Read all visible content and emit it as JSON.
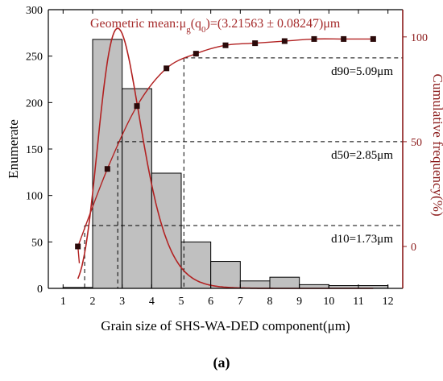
{
  "chart_data": {
    "type": "bar",
    "xlabel": "Grain size of SHS-WA-DED component(μm)",
    "ylabel": "Enumerate",
    "y2label": "Cumulative frequency(%)",
    "title": "Geometric mean:μg(q0)=(3.21563 ± 0.08247)μm",
    "title_parts": {
      "main": "Geometric mean:μ",
      "sub1": "g",
      "mid": "(q",
      "sub2": "0",
      "end": ")=(3.21563 ± 0.08247)μm"
    },
    "xlim": [
      0.5,
      12.5
    ],
    "ylim": [
      0,
      300
    ],
    "y2lim": [
      -20,
      113
    ],
    "x_ticks": [
      "1",
      "2",
      "3",
      "4",
      "5",
      "6",
      "7",
      "8",
      "9",
      "10",
      "11",
      "12"
    ],
    "y_ticks": [
      "0",
      "50",
      "100",
      "150",
      "200",
      "250",
      "300"
    ],
    "y2_ticks": [
      "0",
      "50",
      "100"
    ],
    "bars": {
      "bin_width": 1,
      "centers": [
        1.5,
        2.5,
        3.5,
        4.5,
        5.5,
        6.5,
        7.5,
        8.5,
        9.5,
        10.5,
        11.5
      ],
      "values": [
        1,
        268,
        215,
        124,
        50,
        29,
        8,
        12,
        4,
        3,
        3
      ]
    },
    "cumulative_points": {
      "x": [
        1.5,
        2.5,
        3.5,
        4.5,
        5.5,
        6.5,
        7.5,
        8.5,
        9.5,
        10.5,
        11.5
      ],
      "y": [
        0,
        37,
        67,
        85,
        92,
        96,
        97,
        98,
        99,
        99,
        99
      ]
    },
    "lognormal_fit": {
      "peak_x": 2.85,
      "peak_y": 280,
      "sigma": 0.25
    },
    "percentiles": [
      {
        "label": "d90=5.09μm",
        "pct": 90,
        "x": 5.09
      },
      {
        "label": "d50=2.85μm",
        "pct": 50,
        "x": 2.85
      },
      {
        "label": "d10=1.73μm",
        "pct": 10,
        "x": 1.73
      }
    ],
    "colors": {
      "bar_fill": "#c0c0c0",
      "axis_right": "#8b1a1a",
      "curve": "#b22222",
      "title": "#a52a2a",
      "points": "#2b0a0a"
    }
  },
  "panel_label": "(a)"
}
